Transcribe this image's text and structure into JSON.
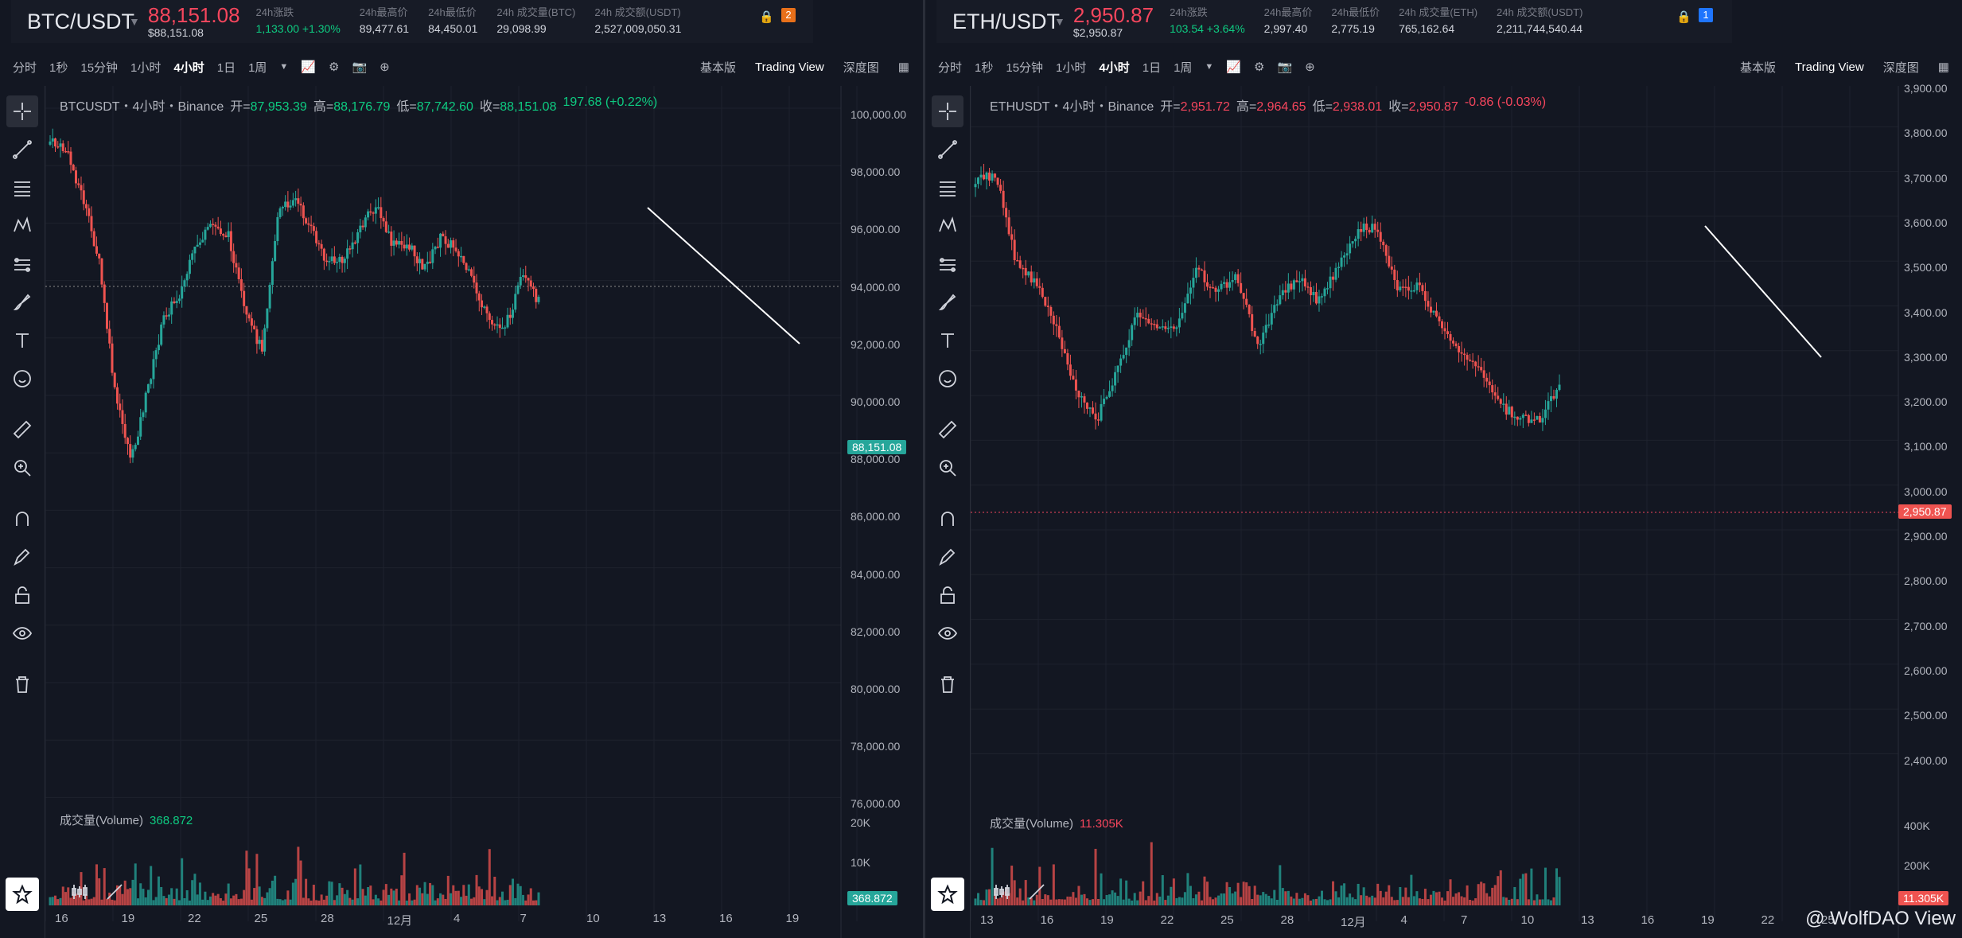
{
  "left": {
    "ticker": {
      "symbol": "BTC/USDT",
      "price": "88,151.08",
      "price_sub": "$88,151.08",
      "stats": [
        {
          "label": "24h涨跌",
          "value": "1,133.00 +1.30%",
          "green": true
        },
        {
          "label": "24h最高价",
          "value": "89,477.61"
        },
        {
          "label": "24h最低价",
          "value": "84,450.01"
        },
        {
          "label": "24h 成交量(BTC)",
          "value": "29,098.99"
        },
        {
          "label": "24h 成交额(USDT)",
          "value": "2,527,009,050.31"
        }
      ],
      "badge": "2",
      "badge_color": "#e8701a"
    },
    "toolbar": {
      "items": [
        "分时",
        "1秒",
        "15分钟",
        "1小时",
        "4小时",
        "1日",
        "1周"
      ],
      "active": "4小时",
      "right": [
        "基本版",
        "Trading View",
        "深度图"
      ]
    },
    "legend": {
      "title": "BTCUSDT・4小时・Binance",
      "open_k": "开",
      "open": "87,953.39",
      "high_k": "高",
      "high": "88,176.79",
      "low_k": "低",
      "low": "87,742.60",
      "close_k": "收",
      "close": "88,151.08",
      "change": "197.68 (+0.22%)"
    },
    "volume": {
      "label": "成交量(Volume)",
      "value": "368.872"
    },
    "axis": [
      "100,000.00",
      "98,000.00",
      "96,000.00",
      "94,000.00",
      "92,000.00",
      "90,000.00",
      "88,000.00",
      "86,000.00",
      "84,000.00",
      "82,000.00",
      "80,000.00",
      "78,000.00",
      "76,000.00"
    ],
    "vol_axis": [
      "20K",
      "10K"
    ],
    "price_tag": "88,151.08",
    "vol_tag": "368.872",
    "dates": [
      "16",
      "19",
      "22",
      "25",
      "28",
      "12月",
      "4",
      "7",
      "10",
      "13",
      "16",
      "19"
    ]
  },
  "right": {
    "ticker": {
      "symbol": "ETH/USDT",
      "price": "2,950.87",
      "price_sub": "$2,950.87",
      "stats": [
        {
          "label": "24h涨跌",
          "value": "103.54 +3.64%",
          "green": true
        },
        {
          "label": "24h最高价",
          "value": "2,997.40"
        },
        {
          "label": "24h最低价",
          "value": "2,775.19"
        },
        {
          "label": "24h 成交量(ETH)",
          "value": "765,162.64"
        },
        {
          "label": "24h 成交额(USDT)",
          "value": "2,211,744,540.44"
        }
      ],
      "badge": "1",
      "badge_color": "#1f75fe"
    },
    "toolbar": {
      "items": [
        "分时",
        "1秒",
        "15分钟",
        "1小时",
        "4小时",
        "1日",
        "1周"
      ],
      "active": "4小时",
      "right": [
        "基本版",
        "Trading View",
        "深度图"
      ]
    },
    "legend": {
      "title": "ETHUSDT・4小时・Binance",
      "open_k": "开",
      "open": "2,951.72",
      "high_k": "高",
      "high": "2,964.65",
      "low_k": "低",
      "low": "2,938.01",
      "close_k": "收",
      "close": "2,950.87",
      "change": "-0.86 (-0.03%)"
    },
    "volume": {
      "label": "成交量(Volume)",
      "value": "11.305K"
    },
    "axis": [
      "3,900.00",
      "3,800.00",
      "3,700.00",
      "3,600.00",
      "3,500.00",
      "3,400.00",
      "3,300.00",
      "3,200.00",
      "3,100.00",
      "3,000.00",
      "2,900.00",
      "2,800.00",
      "2,700.00",
      "2,600.00",
      "2,500.00",
      "2,400.00"
    ],
    "vol_axis": [
      "400K",
      "200K"
    ],
    "price_tag": "2,950.87",
    "vol_tag": "11.305K",
    "dates": [
      "13",
      "16",
      "19",
      "22",
      "25",
      "28",
      "12月",
      "4",
      "7",
      "10",
      "13",
      "16",
      "19",
      "22",
      "25"
    ]
  },
  "watermark": "@ WolfDAO View",
  "colors": {
    "up": "#26a69a",
    "down": "#ef5350",
    "bg": "#131722",
    "line": "#ffffff"
  }
}
